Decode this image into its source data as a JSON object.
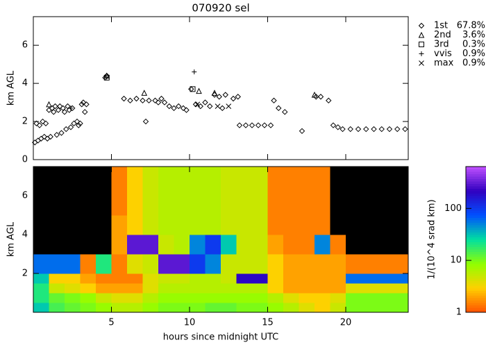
{
  "chart_data": [
    {
      "type": "scatter",
      "title": "070920 sel",
      "ylabel": "km AGL",
      "xlim": [
        0,
        24
      ],
      "xticks": [
        5,
        10,
        15,
        20
      ],
      "ylim": [
        0,
        7.5
      ],
      "yticks": [
        0,
        2,
        4,
        6
      ],
      "legend": "right",
      "series": [
        {
          "name": "1st",
          "share": "67.8%",
          "marker": "diamond",
          "color": "#000000",
          "x": [
            0.1,
            0.2,
            0.3,
            0.4,
            0.5,
            0.6,
            0.7,
            0.8,
            0.9,
            1.0,
            1.1,
            1.2,
            1.3,
            1.4,
            1.5,
            1.6,
            1.7,
            1.8,
            1.9,
            2.0,
            2.1,
            2.2,
            2.3,
            2.4,
            2.5,
            2.6,
            2.8,
            2.9,
            3.0,
            3.1,
            3.2,
            3.3,
            3.4,
            4.6,
            4.7,
            5.8,
            6.2,
            6.6,
            7.0,
            7.2,
            7.4,
            7.8,
            8.0,
            8.2,
            8.4,
            8.7,
            9.0,
            9.3,
            9.6,
            9.8,
            10.1,
            10.4,
            10.7,
            11.0,
            11.3,
            11.6,
            11.9,
            12.1,
            12.3,
            12.8,
            13.1,
            13.2,
            13.6,
            14.0,
            14.4,
            14.8,
            15.2,
            15.4,
            15.7,
            16.1,
            17.2,
            18.1,
            18.4,
            18.9,
            19.2,
            19.5,
            19.8,
            20.3,
            20.8,
            21.3,
            21.8,
            22.3,
            22.8,
            23.3,
            23.8
          ],
          "y": [
            0.9,
            1.9,
            1.0,
            1.8,
            1.1,
            2.0,
            1.2,
            1.9,
            1.1,
            2.6,
            1.2,
            2.7,
            2.5,
            2.8,
            1.3,
            2.6,
            2.8,
            1.4,
            2.7,
            2.5,
            1.6,
            2.8,
            2.6,
            1.7,
            2.7,
            1.9,
            2.0,
            1.8,
            1.9,
            2.9,
            3.0,
            2.5,
            2.9,
            4.3,
            4.4,
            3.2,
            3.1,
            3.2,
            3.1,
            2.0,
            3.1,
            3.1,
            3.0,
            3.2,
            3.0,
            2.8,
            2.7,
            2.8,
            2.7,
            2.6,
            3.7,
            2.9,
            2.8,
            3.0,
            2.8,
            3.4,
            3.3,
            2.7,
            3.4,
            3.2,
            3.3,
            1.8,
            1.8,
            1.8,
            1.8,
            1.8,
            1.8,
            3.1,
            2.7,
            2.5,
            1.5,
            3.3,
            3.3,
            3.1,
            1.8,
            1.7,
            1.6,
            1.6,
            1.6,
            1.6,
            1.6,
            1.6,
            1.6,
            1.6,
            1.6
          ]
        },
        {
          "name": "2nd",
          "share": "3.6%",
          "marker": "triangle",
          "color": "#000000",
          "x": [
            1.0,
            4.7,
            7.1,
            10.6,
            11.6,
            18.0
          ],
          "y": [
            2.9,
            4.4,
            3.5,
            3.6,
            3.5,
            3.4
          ]
        },
        {
          "name": "3rd",
          "share": "0.3%",
          "marker": "square",
          "color": "#000000",
          "x": [
            4.7,
            10.2
          ],
          "y": [
            4.3,
            3.7
          ]
        },
        {
          "name": "vvis",
          "share": "0.9%",
          "marker": "plus",
          "color": "#000000",
          "x": [
            10.3,
            2.4
          ],
          "y": [
            4.6,
            2.7
          ]
        },
        {
          "name": "max",
          "share": "0.9%",
          "marker": "cross",
          "color": "#000000",
          "x": [
            10.5,
            11.8,
            12.5
          ],
          "y": [
            2.9,
            2.8,
            2.8
          ]
        }
      ]
    },
    {
      "type": "heatmap",
      "ylabel": "km AGL",
      "xlabel": "hours since midnight UTC",
      "xlim": [
        0,
        24
      ],
      "xticks": [
        5,
        10,
        15,
        20
      ],
      "ylim": [
        0,
        7.5
      ],
      "yticks": [
        2,
        4,
        6
      ],
      "x_edges": [
        0,
        1,
        2,
        3,
        4,
        5,
        6,
        7,
        8,
        9,
        10,
        11,
        12,
        13,
        14,
        15,
        16,
        17,
        18,
        19,
        20,
        21,
        22,
        23,
        24
      ],
      "y_edges": [
        0,
        0.5,
        1,
        1.5,
        2,
        3,
        4,
        5,
        7.5
      ],
      "z": [
        [
          30,
          15,
          12,
          10,
          8,
          6,
          6,
          8,
          10,
          10,
          10,
          12,
          12,
          10,
          10,
          8,
          6,
          4,
          3,
          5,
          10,
          10,
          10,
          10
        ],
        [
          20,
          12,
          10,
          8,
          5,
          4,
          4,
          6,
          8,
          8,
          8,
          8,
          8,
          8,
          8,
          6,
          4,
          3,
          3,
          4,
          10,
          10,
          10,
          10
        ],
        [
          20,
          5,
          4,
          3,
          2,
          2,
          2,
          4,
          6,
          6,
          6,
          6,
          6,
          6,
          6,
          3,
          2,
          2,
          2,
          2,
          4,
          4,
          4,
          4
        ],
        [
          30,
          3,
          3,
          2,
          1.5,
          1.5,
          1.5,
          4,
          5,
          5,
          6,
          6,
          5,
          200,
          200,
          3,
          2,
          2,
          2,
          2,
          60,
          60,
          60,
          60
        ],
        [
          60,
          60,
          60,
          1.5,
          20,
          1.5,
          4,
          5,
          300,
          300,
          100,
          50,
          5,
          5,
          5,
          3,
          2,
          2,
          2,
          2,
          1.5,
          1.5,
          1.5,
          1.5
        ],
        [
          0.8,
          0.8,
          0.8,
          0.8,
          0.8,
          2,
          300,
          300,
          5,
          6,
          50,
          100,
          30,
          5,
          5,
          2,
          1.5,
          1.5,
          50,
          1.5,
          0.8,
          0.8,
          0.8,
          0.8
        ],
        [
          0.8,
          0.8,
          0.8,
          0.8,
          0.8,
          2,
          3,
          5,
          6,
          6,
          6,
          6,
          5,
          5,
          5,
          1.5,
          1.5,
          1.5,
          1.5,
          0.8,
          0.8,
          0.8,
          0.8,
          0.8
        ],
        [
          0.8,
          0.8,
          0.8,
          0.8,
          0.8,
          1.5,
          3,
          5,
          6,
          6,
          6,
          6,
          5,
          5,
          5,
          1.5,
          1.5,
          1.5,
          1.5,
          0.8,
          0.8,
          0.8,
          0.8,
          0.8
        ]
      ],
      "below_color": "#000000",
      "colorbar": {
        "label": "1/(10^4 srad km)",
        "log": true,
        "lim": [
          1,
          640
        ],
        "ticks": [
          1,
          10,
          100
        ],
        "colors": [
          "#ff5000",
          "#ffd000",
          "#90ff00",
          "#00e0a0",
          "#0050ff",
          "#3000c0",
          "#c050ff"
        ]
      }
    }
  ]
}
